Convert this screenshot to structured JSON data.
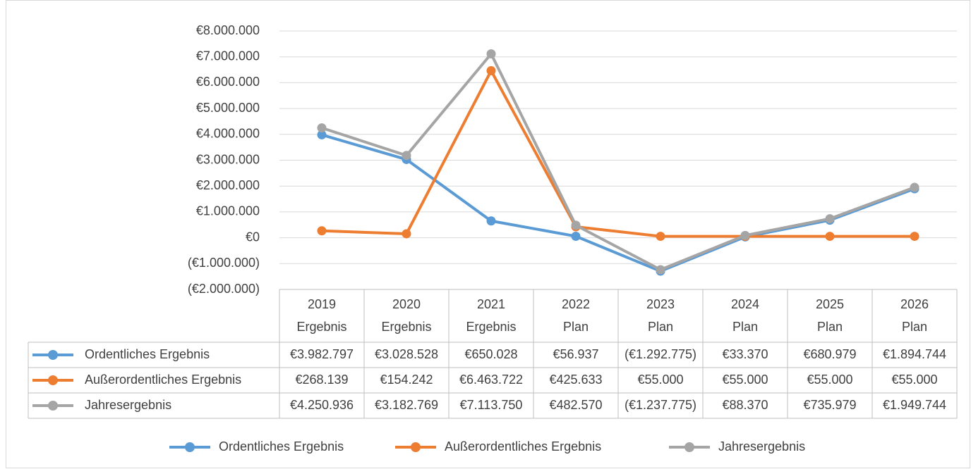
{
  "chart_data": {
    "type": "line",
    "categories": [
      [
        "2019",
        "Ergebnis"
      ],
      [
        "2020",
        "Ergebnis"
      ],
      [
        "2021",
        "Ergebnis"
      ],
      [
        "2022",
        "Plan"
      ],
      [
        "2023",
        "Plan"
      ],
      [
        "2024",
        "Plan"
      ],
      [
        "2025",
        "Plan"
      ],
      [
        "2026",
        "Plan"
      ]
    ],
    "series": [
      {
        "name": "Ordentliches Ergebnis",
        "color": "#5b9bd5",
        "values": [
          3982797,
          3028528,
          650028,
          56937,
          -1292775,
          33370,
          680979,
          1894744
        ],
        "value_labels": [
          "€3.982.797",
          "€3.028.528",
          "€650.028",
          "€56.937",
          "(€1.292.775)",
          "€33.370",
          "€680.979",
          "€1.894.744"
        ]
      },
      {
        "name": "Außerordentliches Ergebnis",
        "color": "#ed7d31",
        "values": [
          268139,
          154242,
          6463722,
          425633,
          55000,
          55000,
          55000,
          55000
        ],
        "value_labels": [
          "€268.139",
          "€154.242",
          "€6.463.722",
          "€425.633",
          "€55.000",
          "€55.000",
          "€55.000",
          "€55.000"
        ]
      },
      {
        "name": "Jahresergebnis",
        "color": "#a5a5a5",
        "values": [
          4250936,
          3182769,
          7113750,
          482570,
          -1237775,
          88370,
          735979,
          1949744
        ],
        "value_labels": [
          "€4.250.936",
          "€3.182.769",
          "€7.113.750",
          "€482.570",
          "(€1.237.775)",
          "€88.370",
          "€735.979",
          "€1.949.744"
        ]
      }
    ],
    "ylim": [
      -2000000,
      8000000
    ],
    "yticks": [
      {
        "value": -2000000,
        "label": "(€2.000.000)"
      },
      {
        "value": -1000000,
        "label": "(€1.000.000)"
      },
      {
        "value": 0,
        "label": "€0"
      },
      {
        "value": 1000000,
        "label": "€1.000.000"
      },
      {
        "value": 2000000,
        "label": "€2.000.000"
      },
      {
        "value": 3000000,
        "label": "€3.000.000"
      },
      {
        "value": 4000000,
        "label": "€4.000.000"
      },
      {
        "value": 5000000,
        "label": "€5.000.000"
      },
      {
        "value": 6000000,
        "label": "€6.000.000"
      },
      {
        "value": 7000000,
        "label": "€7.000.000"
      },
      {
        "value": 8000000,
        "label": "€8.000.000"
      }
    ],
    "grid": true,
    "legend": "bottom"
  }
}
